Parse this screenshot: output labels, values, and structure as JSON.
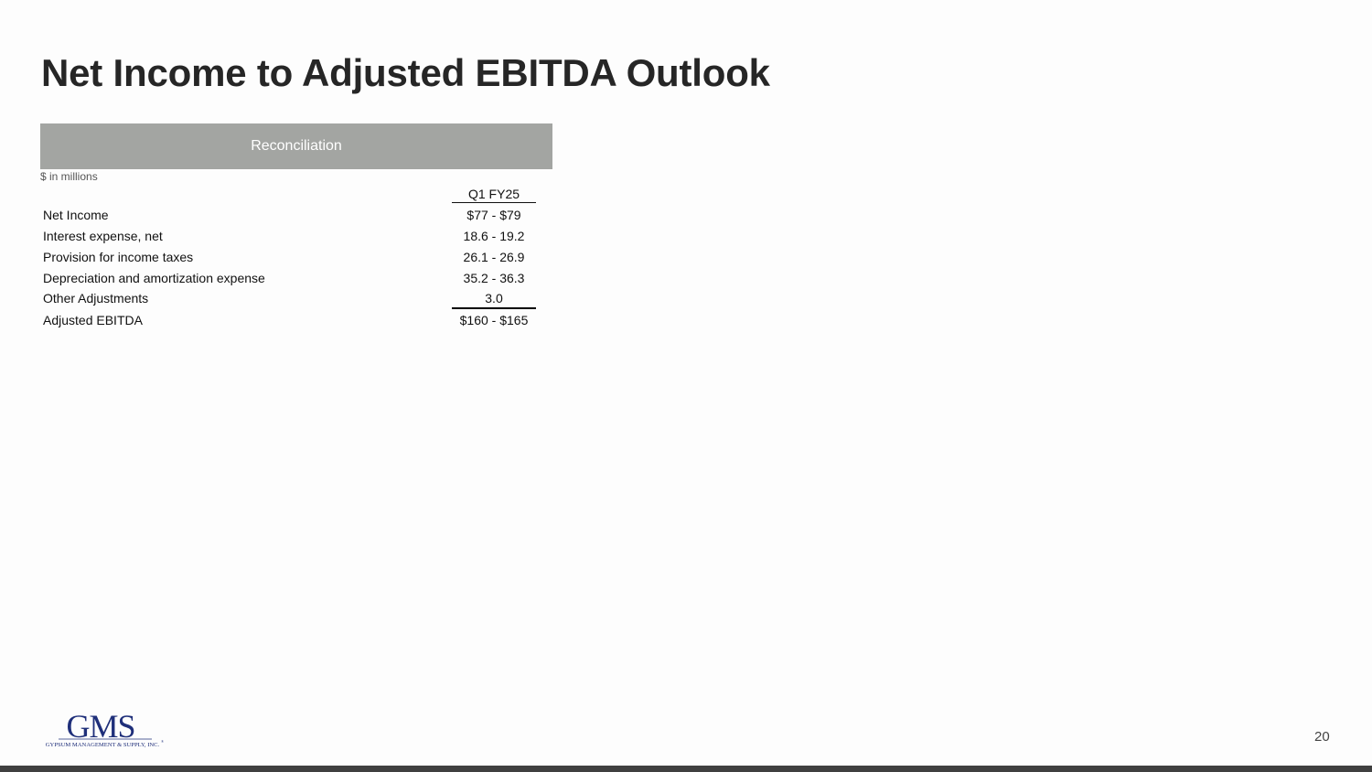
{
  "title": "Net Income to Adjusted EBITDA Outlook",
  "banner": "Reconciliation",
  "units": "$ in millions",
  "column_header": "Q1 FY25",
  "rows": [
    {
      "label": "Net Income",
      "value": "$77 - $79"
    },
    {
      "label": "Interest expense, net",
      "value": "18.6 - 19.2"
    },
    {
      "label": "Provision for income taxes",
      "value": "26.1 - 26.9"
    },
    {
      "label": "Depreciation and amortization expense",
      "value": "35.2 - 36.3"
    },
    {
      "label": "Other Adjustments",
      "value": "3.0"
    },
    {
      "label": "Adjusted EBITDA",
      "value": "$160 - $165"
    }
  ],
  "logo": {
    "mark": "GMS",
    "tagline": "GYPSUM MANAGEMENT & SUPPLY, INC.",
    "color": "#1f2f7a"
  },
  "page_number": "20"
}
